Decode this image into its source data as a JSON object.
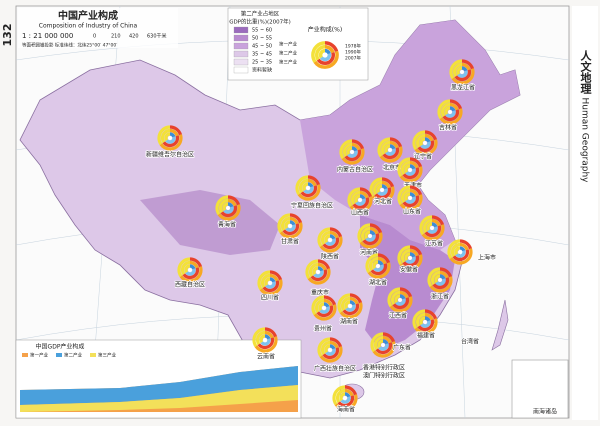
{
  "header": {
    "page_number": "132",
    "title": "中国产业构成",
    "subtitle": "Composition of Industry of China",
    "scale": "1 : 21 000 000",
    "scale_ticks": [
      "0",
      "210",
      "420",
      "630千米"
    ],
    "projection": "等面积圆锥投影  标准纬线：北纬25°00′ 47°00′"
  },
  "side": {
    "title": "人文地理",
    "subtitle": "Human Geography"
  },
  "legend": {
    "title_lines": [
      "第二产业占地区",
      "GDP的比重(%)(2007年)"
    ],
    "classes": [
      "55 ~ 60",
      "50 ~ 55",
      "45 ~ 50",
      "35 ~ 45",
      "25 ~ 35",
      "资料暂缺"
    ],
    "ring_title": "产业构成(%)",
    "ring_labels": [
      "第一产业",
      "第二产业",
      "第三产业"
    ],
    "ring_years": [
      "1978年",
      "1990年",
      "2007年"
    ]
  },
  "provinces": [
    "黑龙江省",
    "吉林省",
    "辽宁省",
    "内蒙古自治区",
    "北京市",
    "天津市",
    "河北省",
    "山西省",
    "山东省",
    "宁夏回族自治区",
    "甘肃省",
    "青海省",
    "新疆维吾尔自治区",
    "西藏自治区",
    "陕西省",
    "河南省",
    "江苏省",
    "上海市",
    "安徽省",
    "湖北省",
    "重庆市",
    "四川省",
    "浙江省",
    "湖南省",
    "江西省",
    "贵州省",
    "福建省",
    "云南省",
    "广西壮族自治区",
    "广东省",
    "香港特别行政区",
    "澳门特别行政区",
    "台湾省",
    "海南省"
  ],
  "places": [
    "南海诸岛"
  ],
  "inset": {
    "title": "中国GDP产业构成",
    "legend": [
      "第一产业",
      "第二产业",
      "第三产业"
    ]
  }
}
